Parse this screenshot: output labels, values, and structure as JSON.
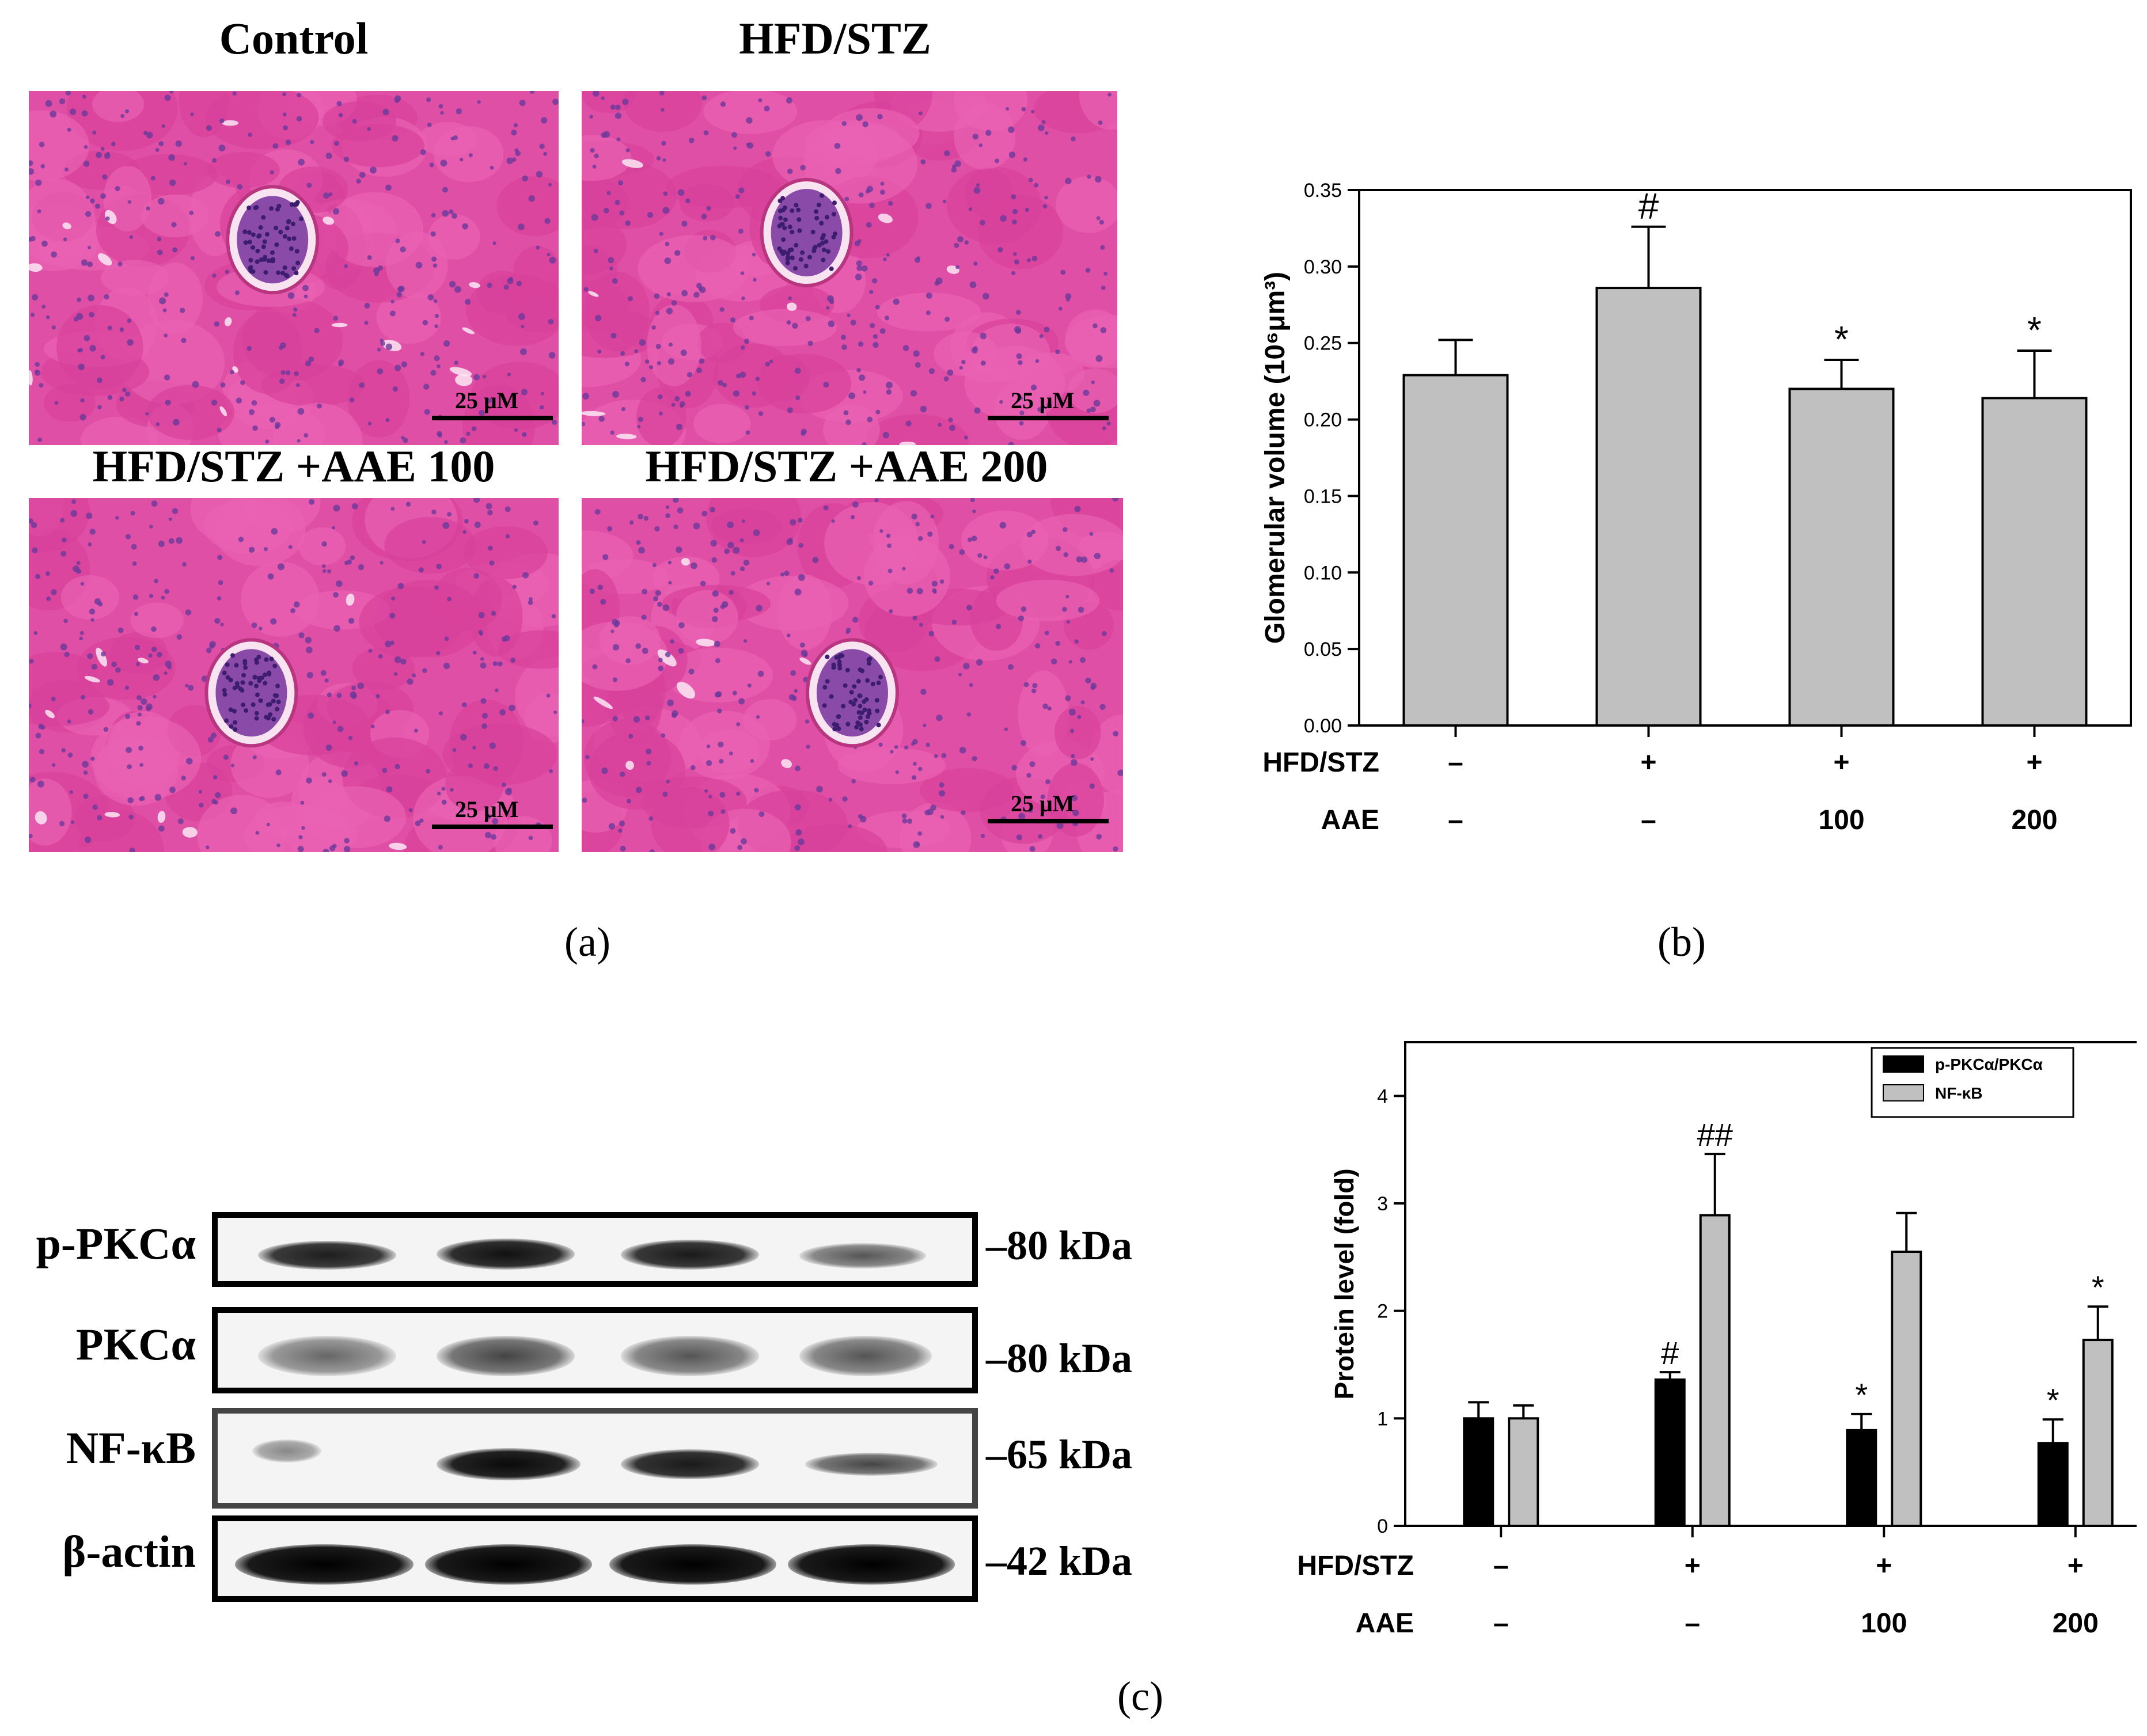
{
  "panel_a": {
    "titles": [
      "Control",
      "HFD/STZ",
      "HFD/STZ +AAE 100",
      "HFD/STZ +AAE 200"
    ],
    "scale_bar_label": "25 μM",
    "label": "(a)"
  },
  "panel_b": {
    "label": "(b)",
    "row_labels": [
      "HFD/STZ",
      "AAE"
    ],
    "hfd_row": [
      "–",
      "+",
      "+",
      "+"
    ],
    "aae_row": [
      "–",
      "–",
      "100",
      "200"
    ]
  },
  "panel_c": {
    "label": "(c)",
    "blot_labels": [
      "p-PKCα",
      "PKCα",
      "NF-κB",
      "β-actin"
    ],
    "kda_labels": [
      "–80 kDa",
      "–80 kDa",
      "–65 kDa",
      "–42 kDa"
    ],
    "row_labels": [
      "HFD/STZ",
      "AAE"
    ],
    "hfd_row": [
      "–",
      "+",
      "+",
      "+"
    ],
    "aae_row": [
      "–",
      "–",
      "100",
      "200"
    ]
  },
  "chart_data": [
    {
      "type": "bar",
      "ylabel": "Glomerular volume (10⁶μm³)",
      "ylim": [
        0,
        0.35
      ],
      "yticks": [
        "0.00",
        "0.05",
        "0.10",
        "0.15",
        "0.20",
        "0.25",
        "0.30",
        "0.35"
      ],
      "categories": [
        "Control",
        "HFD/STZ",
        "HFD/STZ+AAE 100",
        "HFD/STZ+AAE 200"
      ],
      "values": [
        0.229,
        0.286,
        0.22,
        0.214
      ],
      "errors": [
        0.023,
        0.04,
        0.019,
        0.031
      ],
      "annotations": [
        "",
        "#",
        "*",
        "*"
      ],
      "bar_color": "#c0c0c0"
    },
    {
      "type": "bar",
      "ylabel": "Protein level (fold)",
      "ylim": [
        0,
        4.5
      ],
      "yticks": [
        "0",
        "1",
        "2",
        "3",
        "4"
      ],
      "categories": [
        "Control",
        "HFD/STZ",
        "HFD/STZ+AAE 100",
        "HFD/STZ+AAE 200"
      ],
      "legend_position": "top-right",
      "series": [
        {
          "name": "p-PKCα/PKCα",
          "color": "#000000",
          "values": [
            1.0,
            1.36,
            0.89,
            0.77
          ],
          "errors": [
            0.15,
            0.07,
            0.15,
            0.22
          ],
          "annotations": [
            "",
            "#",
            "*",
            "*"
          ]
        },
        {
          "name": "NF-κB",
          "color": "#c0c0c0",
          "values": [
            1.0,
            2.89,
            2.55,
            1.73
          ],
          "errors": [
            0.12,
            0.57,
            0.36,
            0.31
          ],
          "annotations": [
            "",
            "##",
            "",
            "*"
          ]
        }
      ]
    }
  ]
}
